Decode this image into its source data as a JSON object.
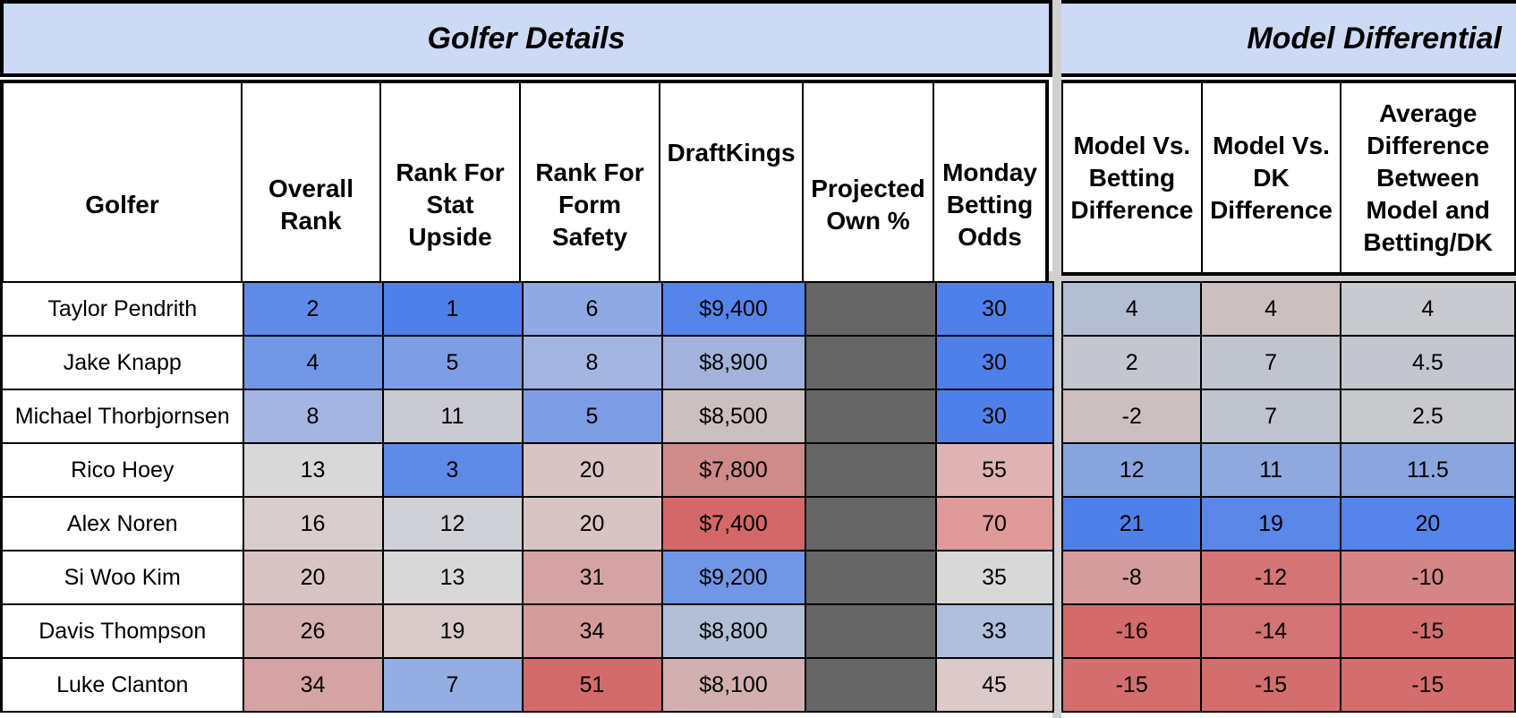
{
  "sections": {
    "left_title": "Golfer Details",
    "right_title": "Model Differential"
  },
  "headers": {
    "golfer": "Golfer",
    "overall": "Overall Rank",
    "stat": "Rank For Stat Upside",
    "form": "Rank For Form Safety",
    "dk": "DraftKings",
    "own": "Projected Own %",
    "odds": "Monday Betting Odds",
    "mvb": "Model Vs. Betting Difference",
    "mvd": "Model Vs. DK Difference",
    "avg": "Average Difference Between Model and Betting/DK"
  },
  "rows": [
    {
      "golfer": "Taylor Pendrith",
      "overall": "2",
      "stat": "1",
      "form": "6",
      "dk": "$9,400",
      "odds": "30",
      "mvb": "4",
      "mvd": "4",
      "avg": "4",
      "colors": {
        "overall": "#5f8ae8",
        "stat": "#4f80ea",
        "form": "#8fa9e5",
        "dk": "#5585ea",
        "odds": "#4f80ea",
        "mvb": "#b3bed3",
        "mvd": "#ccbfc0",
        "avg": "#c9cacf"
      }
    },
    {
      "golfer": "Jake Knapp",
      "overall": "4",
      "stat": "5",
      "form": "8",
      "dk": "$8,900",
      "odds": "30",
      "mvb": "2",
      "mvd": "7",
      "avg": "4.5",
      "colors": {
        "overall": "#7296e6",
        "stat": "#7d9de6",
        "form": "#a4b5e2",
        "dk": "#a2b2da",
        "odds": "#4f80ea",
        "mvb": "#c3c6ce",
        "mvd": "#c0c4cf",
        "avg": "#c3c6ce"
      }
    },
    {
      "golfer": "Michael Thorbjornsen",
      "overall": "8",
      "stat": "11",
      "form": "5",
      "dk": "$8,500",
      "odds": "30",
      "mvb": "-2",
      "mvd": "7",
      "avg": "2.5",
      "colors": {
        "overall": "#a4b5e2",
        "stat": "#c9cad2",
        "form": "#7d9de6",
        "dk": "#ccbfbf",
        "odds": "#4f80ea",
        "mvb": "#ccbfbf",
        "mvd": "#c0c4cf",
        "avg": "#c8c9cd"
      }
    },
    {
      "golfer": "Rico Hoey",
      "overall": "13",
      "stat": "3",
      "form": "20",
      "dk": "$7,800",
      "odds": "55",
      "mvb": "12",
      "mvd": "11",
      "avg": "11.5",
      "colors": {
        "overall": "#d8d8d8",
        "stat": "#5f8ae8",
        "form": "#d9c4c4",
        "dk": "#cf8a8a",
        "odds": "#dfb3b3",
        "mvb": "#88a4df",
        "mvd": "#8fa8dd",
        "avg": "#8ba6de"
      }
    },
    {
      "golfer": "Alex Noren",
      "overall": "16",
      "stat": "12",
      "form": "20",
      "dk": "$7,400",
      "odds": "70",
      "mvb": "21",
      "mvd": "19",
      "avg": "20",
      "colors": {
        "overall": "#d9cdcd",
        "stat": "#d0d1d6",
        "form": "#d9c4c4",
        "dk": "#d46868",
        "odds": "#e09a9a",
        "mvb": "#4f80ea",
        "mvd": "#5a87e8",
        "avg": "#5585ea"
      }
    },
    {
      "golfer": "Si Woo Kim",
      "overall": "20",
      "stat": "13",
      "form": "31",
      "dk": "$9,200",
      "odds": "35",
      "mvb": "-8",
      "mvd": "-12",
      "avg": "-10",
      "colors": {
        "overall": "#d9c4c4",
        "stat": "#d8d8d8",
        "form": "#d5a3a3",
        "dk": "#7296e6",
        "odds": "#d8d8d8",
        "mvb": "#d49c9c",
        "mvd": "#d47474",
        "avg": "#d48686"
      }
    },
    {
      "golfer": "Davis Thompson",
      "overall": "26",
      "stat": "19",
      "form": "34",
      "dk": "$8,800",
      "odds": "33",
      "mvb": "-16",
      "mvd": "-14",
      "avg": "-15",
      "colors": {
        "overall": "#d5b1b1",
        "stat": "#d9c9c9",
        "form": "#d59c9c",
        "dk": "#b3bfd6",
        "odds": "#b0bfde",
        "mvb": "#d46a6a",
        "mvd": "#d47373",
        "avg": "#d46e6e"
      }
    },
    {
      "golfer": "Luke Clanton",
      "overall": "34",
      "stat": "7",
      "form": "51",
      "dk": "$8,100",
      "odds": "45",
      "mvb": "-15",
      "mvd": "-15",
      "avg": "-15",
      "colors": {
        "overall": "#d5a3a3",
        "stat": "#94ade3",
        "form": "#d46b6b",
        "dk": "#d3b0b0",
        "odds": "#dcc9c9",
        "mvb": "#d46e6e",
        "mvd": "#d46e6e",
        "avg": "#d46e6e"
      }
    }
  ]
}
